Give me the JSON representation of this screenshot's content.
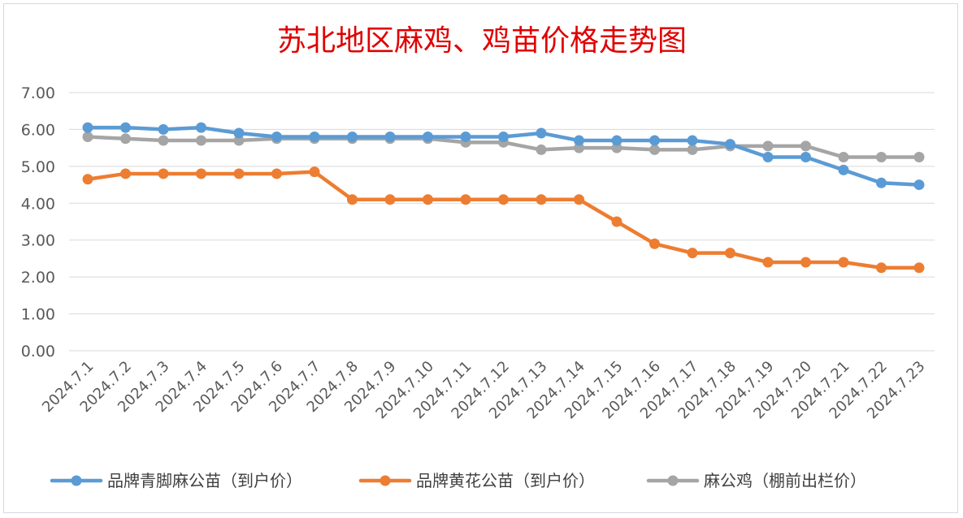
{
  "chart_data": {
    "type": "line",
    "title": "苏北地区麻鸡、鸡苗价格走势图",
    "xlabel": "",
    "ylabel": "",
    "ylim": [
      0,
      7
    ],
    "y_ticks": [
      "0.00",
      "1.00",
      "2.00",
      "3.00",
      "4.00",
      "5.00",
      "6.00",
      "7.00"
    ],
    "grid": true,
    "legend_position": "bottom",
    "x": [
      "2024.7.1",
      "2024.7.2",
      "2024.7.3",
      "2024.7.4",
      "2024.7.5",
      "2024.7.6",
      "2024.7.7",
      "2024.7.8",
      "2024.7.9",
      "2024.7.10",
      "2024.7.11",
      "2024.7.12",
      "2024.7.13",
      "2024.7.14",
      "2024.7.15",
      "2024.7.16",
      "2024.7.17",
      "2024.7.18",
      "2024.7.19",
      "2024.7.20",
      "2024.7.21",
      "2024.7.22",
      "2024.7.23"
    ],
    "series": [
      {
        "name": "品牌青脚麻公苗（到户价）",
        "color": "#5b9bd5",
        "values": [
          6.05,
          6.05,
          6.0,
          6.05,
          5.9,
          5.8,
          5.8,
          5.8,
          5.8,
          5.8,
          5.8,
          5.8,
          5.9,
          5.7,
          5.7,
          5.7,
          5.7,
          5.6,
          5.25,
          5.25,
          4.9,
          4.55,
          4.5
        ]
      },
      {
        "name": "品牌黄花公苗（到户价）",
        "color": "#ed7d31",
        "values": [
          4.65,
          4.8,
          4.8,
          4.8,
          4.8,
          4.8,
          4.85,
          4.1,
          4.1,
          4.1,
          4.1,
          4.1,
          4.1,
          4.1,
          3.5,
          2.9,
          2.65,
          2.65,
          2.4,
          2.4,
          2.4,
          2.25,
          2.25
        ]
      },
      {
        "name": "麻公鸡（棚前出栏价）",
        "color": "#a5a5a5",
        "values": [
          5.8,
          5.75,
          5.7,
          5.7,
          5.7,
          5.75,
          5.75,
          5.75,
          5.75,
          5.75,
          5.65,
          5.65,
          5.45,
          5.5,
          5.5,
          5.45,
          5.45,
          5.55,
          5.55,
          5.55,
          5.25,
          5.25,
          5.25
        ]
      }
    ]
  }
}
